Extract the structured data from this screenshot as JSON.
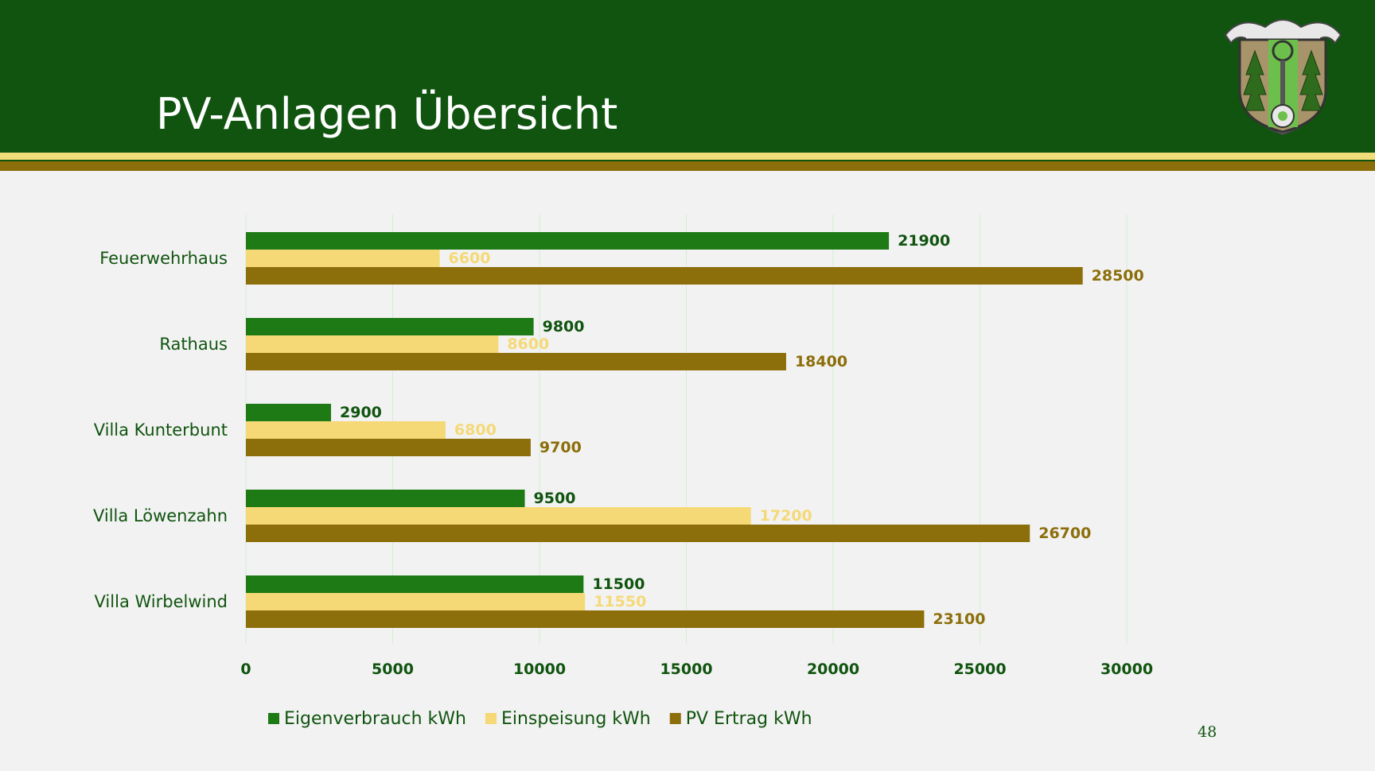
{
  "slide": {
    "title": "PV-Anlagen Übersicht",
    "page_number": "48"
  },
  "colors": {
    "header_bg": "#10540f",
    "eigenverbrauch": "#1e7a14",
    "einspeisung": "#f5d977",
    "pv_ertrag": "#8c6e0a",
    "label_text": "#10540f",
    "gridline": "#d4efd2"
  },
  "chart_data": {
    "type": "bar",
    "orientation": "horizontal",
    "title": "",
    "xlabel": "",
    "ylabel": "",
    "categories": [
      "Feuerwehrhaus",
      "Rathaus",
      "Villa Kunterbunt",
      "Villa Löwenzahn",
      "Villa Wirbelwind"
    ],
    "series": [
      {
        "name": "Eigenverbrauch kWh",
        "color": "#1e7a14",
        "label_color": "#10540f",
        "values": [
          21900,
          9800,
          2900,
          9500,
          11500
        ]
      },
      {
        "name": "Einspeisung kWh",
        "color": "#f5d977",
        "label_color": "#f5d977",
        "values": [
          6600,
          8600,
          6800,
          17200,
          11550
        ]
      },
      {
        "name": "PV Ertrag kWh",
        "color": "#8c6e0a",
        "label_color": "#8c6e0a",
        "values": [
          28500,
          18400,
          9700,
          26700,
          23100
        ]
      }
    ],
    "xlim": [
      0,
      30000
    ],
    "ticks": [
      0,
      5000,
      10000,
      15000,
      20000,
      25000,
      30000
    ],
    "grid": true,
    "legend_position": "bottom",
    "data_labels": true
  }
}
